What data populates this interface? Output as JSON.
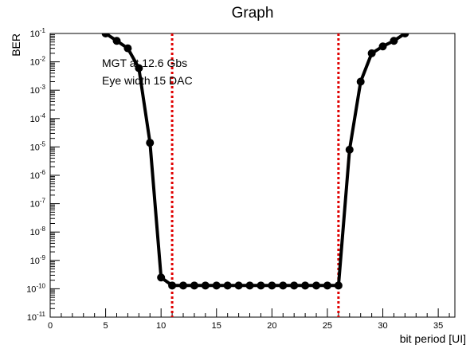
{
  "chart_data": {
    "type": "line",
    "title": "Graph",
    "xlabel": "bit period [UI]",
    "ylabel": "BER",
    "xlim": [
      0,
      36.5
    ],
    "ylim_exponent": [
      -11,
      -1
    ],
    "y_scale": "log",
    "x_ticks": [
      0,
      5,
      10,
      15,
      20,
      25,
      30,
      35
    ],
    "y_tick_exponents": [
      -11,
      -10,
      -9,
      -8,
      -7,
      -6,
      -5,
      -4,
      -3,
      -2,
      -1
    ],
    "y_tick_base": "10",
    "annotations": [
      "MGT at 12.6 Gbs",
      "Eye width 15 DAC"
    ],
    "vertical_lines": [
      {
        "x": 11,
        "color": "#e00000",
        "style": "dotted"
      },
      {
        "x": 26,
        "color": "#e00000",
        "style": "dotted"
      }
    ],
    "series": [
      {
        "color": "#000000",
        "marker": "circle",
        "x": [
          5,
          6,
          7,
          8,
          9,
          10,
          11,
          12,
          13,
          14,
          15,
          16,
          17,
          18,
          19,
          20,
          21,
          22,
          23,
          24,
          25,
          26,
          27,
          28,
          29,
          30,
          31,
          32
        ],
        "y": [
          0.1,
          0.055,
          0.03,
          0.006,
          1.4e-05,
          2.5e-10,
          1.3e-10,
          1.3e-10,
          1.3e-10,
          1.3e-10,
          1.3e-10,
          1.3e-10,
          1.3e-10,
          1.3e-10,
          1.3e-10,
          1.3e-10,
          1.3e-10,
          1.3e-10,
          1.3e-10,
          1.3e-10,
          1.3e-10,
          1.3e-10,
          8e-06,
          0.002,
          0.02,
          0.035,
          0.055,
          0.1
        ]
      }
    ]
  }
}
